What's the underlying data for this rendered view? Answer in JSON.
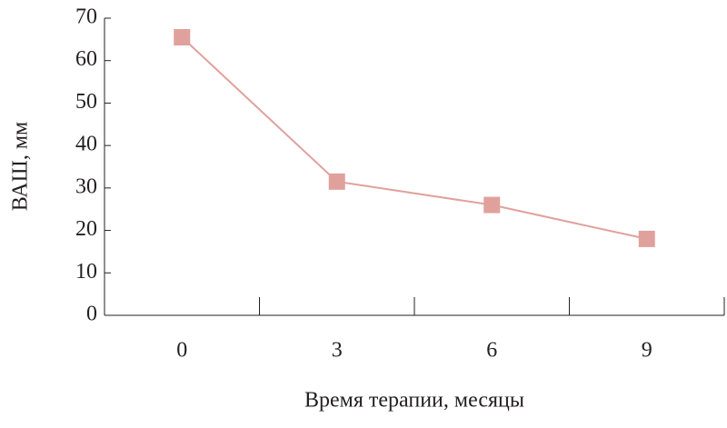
{
  "chart_data": {
    "type": "line",
    "x_label": "Время терапии, месяцы",
    "y_label": "ВАШ, мм",
    "categories": [
      "0",
      "3",
      "6",
      "9"
    ],
    "series": [
      {
        "color": "#e0a19d",
        "values": [
          65.5,
          31.5,
          26,
          18
        ]
      }
    ],
    "ylim": [
      0,
      70
    ],
    "yticks": [
      0,
      10,
      20,
      30,
      40,
      50,
      60,
      70
    ]
  }
}
